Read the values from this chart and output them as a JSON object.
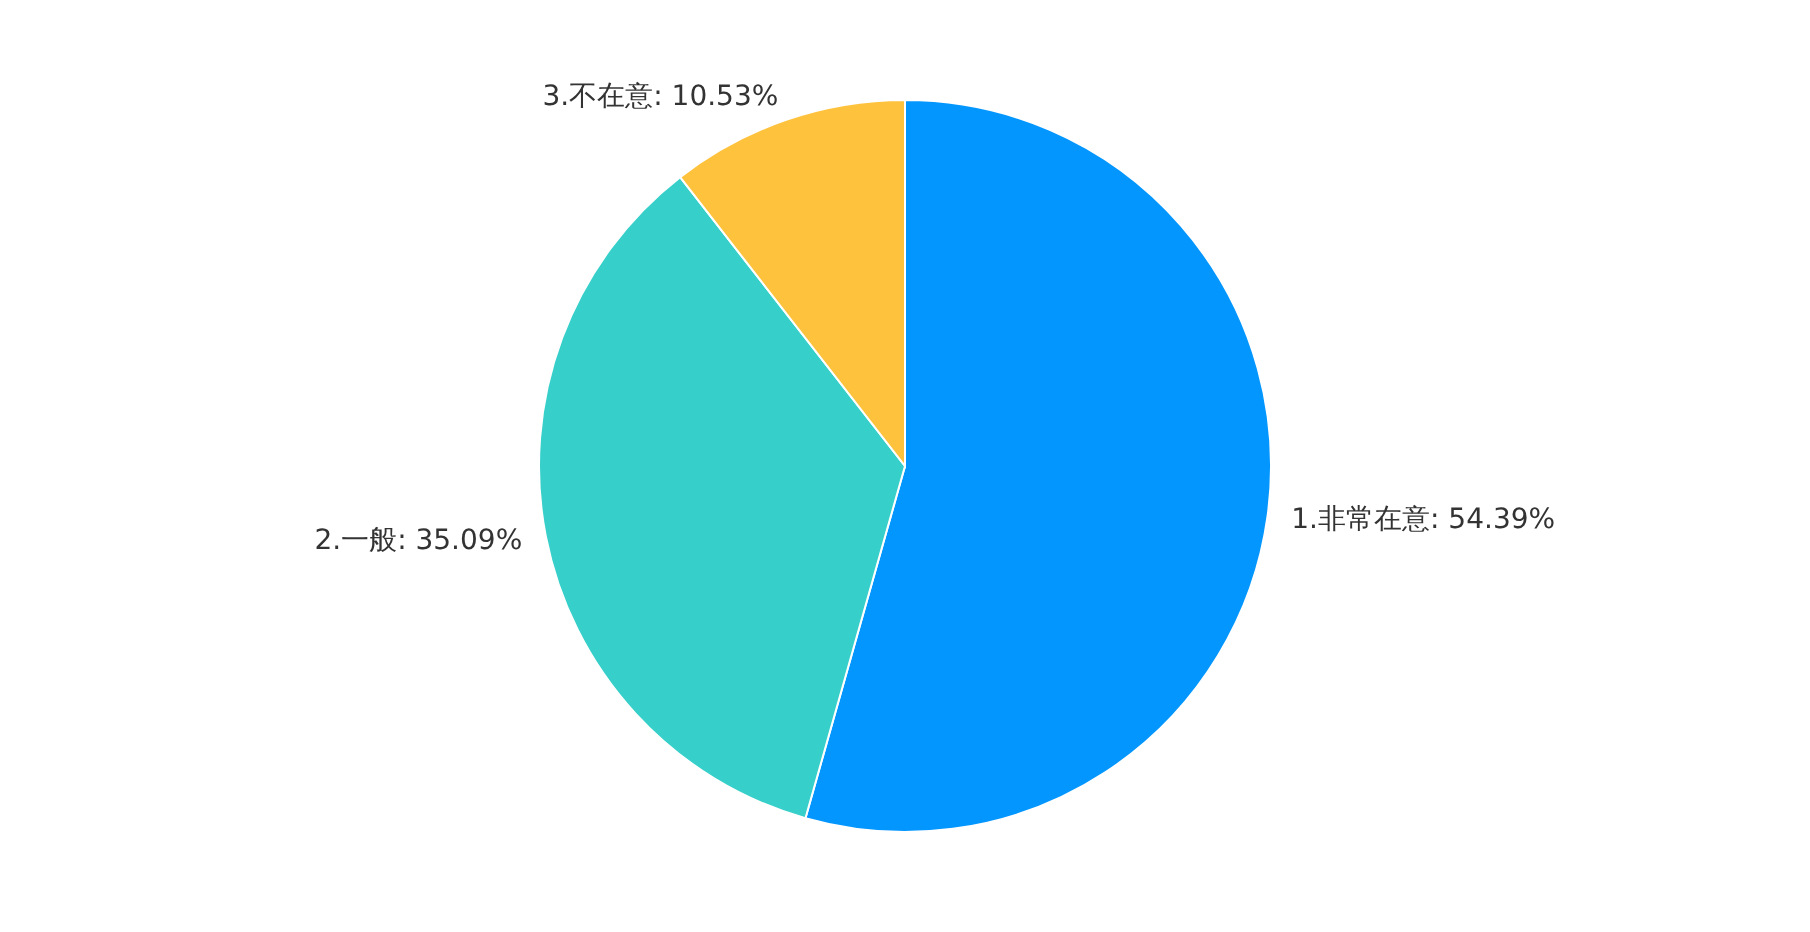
{
  "chart_data": {
    "type": "pie",
    "categories": [
      "1.非常在意",
      "2.一般",
      "3.不在意"
    ],
    "values": [
      54.39,
      35.09,
      10.53
    ],
    "colors": [
      "#0396ff",
      "#36cfc9",
      "#ffc23d"
    ],
    "value_labels": [
      "54.39%",
      "35.09%",
      "10.53%"
    ],
    "legend": false
  }
}
